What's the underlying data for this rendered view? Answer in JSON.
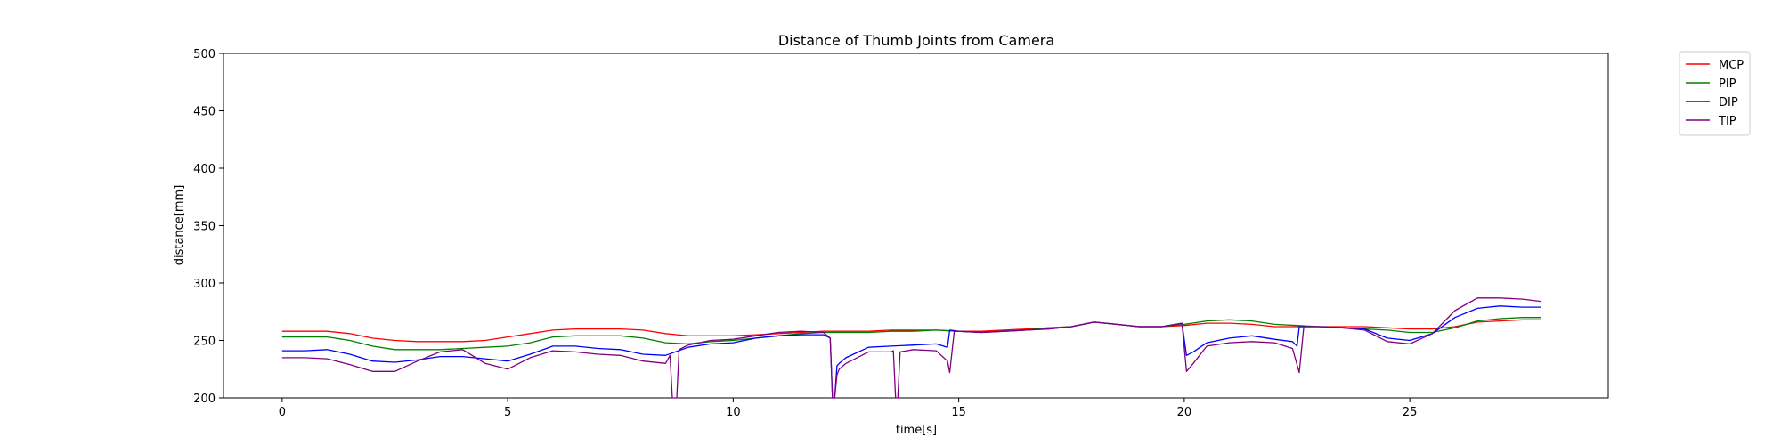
{
  "chart_data": {
    "type": "line",
    "title": "Distance of Thumb Joints from Camera",
    "xlabel": "time[s]",
    "ylabel": "distance[mm]",
    "xlim": [
      -1.3,
      29.4
    ],
    "ylim": [
      200,
      500
    ],
    "xticks": [
      0,
      5,
      10,
      15,
      20,
      25
    ],
    "yticks": [
      200,
      250,
      300,
      350,
      400,
      450,
      500
    ],
    "grid": false,
    "legend_position": "outside-top-right",
    "series": [
      {
        "name": "MCP",
        "color": "#ff0000",
        "x": [
          0,
          0.5,
          1,
          1.5,
          2,
          2.5,
          3,
          3.5,
          4,
          4.5,
          5,
          5.5,
          6,
          6.5,
          7,
          7.5,
          8,
          8.5,
          9,
          9.5,
          10,
          10.5,
          11,
          11.5,
          12,
          12.5,
          13,
          13.5,
          14,
          14.5,
          15,
          15.5,
          16,
          16.5,
          17,
          17.5,
          18,
          18.5,
          19,
          19.5,
          20,
          20.5,
          21,
          21.5,
          22,
          22.5,
          23,
          23.5,
          24,
          24.5,
          25,
          25.5,
          26,
          26.5,
          27,
          27.5,
          27.9
        ],
        "values": [
          258,
          258,
          258,
          256,
          252,
          250,
          249,
          249,
          249,
          250,
          253,
          256,
          259,
          260,
          260,
          260,
          259,
          256,
          254,
          254,
          254,
          255,
          256,
          257,
          258,
          258,
          258,
          259,
          259,
          259,
          258,
          258,
          259,
          260,
          261,
          262,
          266,
          264,
          262,
          262,
          263,
          265,
          265,
          264,
          262,
          262,
          262,
          262,
          262,
          261,
          260,
          260,
          262,
          266,
          267,
          268,
          268
        ]
      },
      {
        "name": "PIP",
        "color": "#008000",
        "x": [
          0,
          0.5,
          1,
          1.5,
          2,
          2.5,
          3,
          3.5,
          4,
          4.5,
          5,
          5.5,
          6,
          6.5,
          7,
          7.5,
          8,
          8.5,
          9,
          9.5,
          10,
          10.5,
          11,
          11.5,
          12,
          12.5,
          13,
          13.5,
          14,
          14.5,
          15,
          15.5,
          16,
          16.5,
          17,
          17.5,
          18,
          18.5,
          19,
          19.5,
          20,
          20.5,
          21,
          21.5,
          22,
          22.5,
          23,
          23.5,
          24,
          24.5,
          25,
          25.5,
          26,
          26.5,
          27,
          27.5,
          27.9
        ],
        "values": [
          253,
          253,
          253,
          250,
          245,
          242,
          242,
          242,
          243,
          244,
          245,
          248,
          253,
          254,
          254,
          254,
          252,
          248,
          247,
          249,
          250,
          252,
          254,
          256,
          257,
          257,
          257,
          258,
          258,
          259,
          258,
          257,
          258,
          259,
          261,
          262,
          266,
          264,
          262,
          262,
          264,
          267,
          268,
          267,
          264,
          263,
          262,
          261,
          260,
          259,
          257,
          257,
          261,
          267,
          269,
          270,
          270
        ]
      },
      {
        "name": "DIP",
        "color": "#0000ff",
        "x": [
          0,
          0.5,
          1,
          1.5,
          2,
          2.5,
          3,
          3.5,
          4,
          4.5,
          5,
          5.5,
          6,
          6.5,
          7,
          7.5,
          8,
          8.5,
          9,
          9.5,
          10,
          10.5,
          11,
          11.5,
          12,
          12.15,
          12.2,
          12.25,
          12.3,
          12.35,
          12.5,
          13,
          13.5,
          14,
          14.5,
          14.75,
          14.8,
          15,
          15.5,
          16,
          16.5,
          17,
          17.5,
          18,
          18.5,
          19,
          19.5,
          19.95,
          20.05,
          20.2,
          20.5,
          21,
          21.5,
          22,
          22.4,
          22.5,
          22.55,
          23,
          23.5,
          24,
          24.5,
          25,
          25.5,
          26,
          26.5,
          27,
          27.5,
          27.9
        ],
        "values": [
          241,
          241,
          242,
          238,
          232,
          231,
          233,
          236,
          236,
          234,
          232,
          238,
          245,
          245,
          243,
          242,
          238,
          237,
          244,
          247,
          248,
          252,
          254,
          255,
          255,
          252,
          200,
          200,
          228,
          230,
          235,
          244,
          245,
          246,
          247,
          244,
          259,
          258,
          257,
          258,
          259,
          260,
          262,
          266,
          264,
          262,
          262,
          265,
          237,
          240,
          248,
          252,
          254,
          251,
          249,
          245,
          262,
          262,
          261,
          260,
          252,
          250,
          256,
          270,
          278,
          280,
          279,
          279
        ]
      },
      {
        "name": "TIP",
        "color": "#800080",
        "x": [
          0,
          0.5,
          1,
          1.5,
          2,
          2.5,
          3,
          3.5,
          4,
          4.5,
          5,
          5.5,
          6,
          6.5,
          7,
          7.5,
          8,
          8.5,
          8.6,
          8.65,
          8.75,
          8.8,
          9,
          9.5,
          10,
          10.5,
          11,
          11.5,
          12,
          12.15,
          12.2,
          12.25,
          12.3,
          12.35,
          12.5,
          13,
          13.5,
          13.55,
          13.6,
          13.65,
          13.7,
          14,
          14.5,
          14.75,
          14.8,
          14.9,
          15,
          15.5,
          16,
          16.5,
          17,
          17.5,
          18,
          18.5,
          19,
          19.5,
          19.95,
          20.05,
          20.2,
          20.5,
          21,
          21.5,
          22,
          22.4,
          22.55,
          22.65,
          23,
          23.5,
          24,
          24.5,
          25,
          25.5,
          26,
          26.5,
          27,
          27.5,
          27.9
        ],
        "values": [
          235,
          235,
          234,
          229,
          223,
          223,
          232,
          240,
          242,
          230,
          225,
          235,
          241,
          240,
          238,
          237,
          232,
          230,
          237,
          200,
          200,
          242,
          246,
          250,
          251,
          254,
          257,
          258,
          257,
          252,
          200,
          200,
          220,
          225,
          230,
          240,
          240,
          241,
          200,
          200,
          240,
          242,
          241,
          232,
          222,
          258,
          258,
          257,
          258,
          259,
          260,
          262,
          266,
          264,
          262,
          262,
          265,
          223,
          230,
          245,
          248,
          249,
          248,
          243,
          222,
          262,
          262,
          261,
          259,
          249,
          247,
          256,
          276,
          287,
          287,
          286,
          284
        ]
      }
    ]
  }
}
